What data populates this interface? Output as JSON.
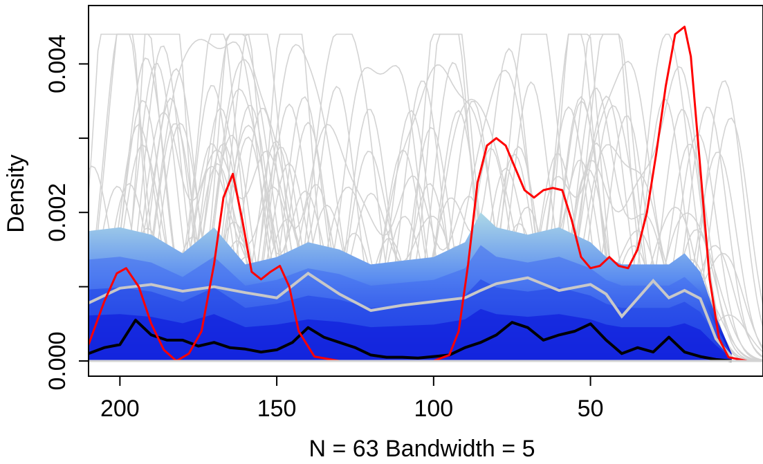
{
  "chart_data": {
    "type": "line",
    "title": "",
    "xlabel": "N = 63 Bandwidth = 5",
    "ylabel": "Density",
    "xlim": [
      210,
      -5
    ],
    "ylim": [
      0,
      0.0046
    ],
    "x_reversed": true,
    "x_ticks": [
      {
        "value": 200,
        "label": "200"
      },
      {
        "value": 150,
        "label": "150"
      },
      {
        "value": 100,
        "label": "100"
      },
      {
        "value": 50,
        "label": "50"
      }
    ],
    "y_ticks": [
      {
        "value": 0,
        "label": "0.000"
      },
      {
        "value": 0.002,
        "label": "0.002"
      },
      {
        "value": 0.004,
        "label": "0.004"
      }
    ],
    "grid": false,
    "legend": "none",
    "colors": {
      "band_outer": "#add8e6",
      "band_inner": "#0000cd",
      "gray_lines": "#d3d3d3",
      "mean_line": "#c8c8c8",
      "median_line": "#000000",
      "observed_line": "#ff0000"
    },
    "band": {
      "x": [
        210,
        200,
        190,
        180,
        170,
        160,
        150,
        140,
        130,
        120,
        110,
        100,
        90,
        85,
        80,
        70,
        60,
        50,
        45,
        40,
        30,
        25,
        20,
        15,
        10,
        5
      ],
      "upper": [
        0.00175,
        0.0018,
        0.0017,
        0.00145,
        0.0018,
        0.0013,
        0.0014,
        0.0016,
        0.0015,
        0.0013,
        0.00135,
        0.0014,
        0.0016,
        0.002,
        0.0018,
        0.0017,
        0.0018,
        0.0016,
        0.0014,
        0.0013,
        0.0013,
        0.0013,
        0.00145,
        0.0012,
        0.0006,
        0.0001
      ],
      "mean": [
        0.00078,
        0.00098,
        0.00103,
        0.00094,
        0.001,
        0.00092,
        0.00085,
        0.00118,
        0.0009,
        0.00068,
        0.00075,
        0.0008,
        0.00085,
        0.00095,
        0.00104,
        0.00112,
        0.00095,
        0.00103,
        0.0009,
        0.0006,
        0.00108,
        0.00085,
        0.00095,
        0.00084,
        0.0003,
        5e-05
      ]
    },
    "series": [
      {
        "role": "median",
        "x": [
          210,
          205,
          200,
          195,
          190,
          185,
          180,
          175,
          170,
          165,
          160,
          155,
          150,
          145,
          140,
          135,
          130,
          125,
          120,
          115,
          110,
          105,
          100,
          95,
          90,
          85,
          80,
          75,
          70,
          65,
          60,
          55,
          50,
          45,
          40,
          35,
          30,
          25,
          20,
          15,
          10,
          5
        ],
        "y": [
          0.0001,
          0.00018,
          0.00022,
          0.00055,
          0.00035,
          0.00028,
          0.00028,
          0.0002,
          0.00025,
          0.00018,
          0.00016,
          0.00012,
          0.00015,
          0.00025,
          0.00045,
          0.00032,
          0.00025,
          0.00018,
          8e-05,
          5e-05,
          5e-05,
          4e-05,
          6e-05,
          8e-05,
          0.00018,
          0.00025,
          0.00035,
          0.00052,
          0.00045,
          0.00028,
          0.00035,
          0.0004,
          0.0005,
          0.00028,
          0.0001,
          0.00018,
          0.00012,
          0.00032,
          0.00012,
          6e-05,
          2e-05,
          0.0
        ]
      },
      {
        "role": "observed",
        "x": [
          210,
          205,
          201,
          198,
          194,
          190,
          186,
          182,
          178,
          174,
          170,
          167,
          164,
          161,
          158,
          155,
          152,
          149,
          146,
          143,
          138,
          130,
          120,
          110,
          100,
          95,
          92,
          89,
          86,
          83,
          80,
          77,
          74,
          71,
          68,
          65,
          62,
          59,
          56,
          53,
          50,
          47,
          44,
          41,
          38,
          35,
          32,
          29,
          26,
          23,
          20,
          18,
          15,
          12,
          9,
          6,
          0,
          -5
        ],
        "y": [
          0.00022,
          0.0008,
          0.00118,
          0.00125,
          0.001,
          0.0005,
          0.00015,
          0.0,
          0.0001,
          0.0004,
          0.0013,
          0.0022,
          0.00252,
          0.0019,
          0.0012,
          0.0011,
          0.0012,
          0.00128,
          0.001,
          0.0004,
          6e-05,
          0.0,
          0.0,
          0.0,
          0.0,
          8e-05,
          0.0004,
          0.0013,
          0.0024,
          0.0029,
          0.003,
          0.0029,
          0.0026,
          0.0023,
          0.0022,
          0.0023,
          0.00233,
          0.0023,
          0.0019,
          0.0014,
          0.00125,
          0.00128,
          0.0014,
          0.00128,
          0.00125,
          0.0015,
          0.002,
          0.0028,
          0.0037,
          0.0044,
          0.0045,
          0.0041,
          0.0026,
          0.0011,
          0.0003,
          5e-05,
          0.0,
          0.0
        ]
      }
    ]
  }
}
